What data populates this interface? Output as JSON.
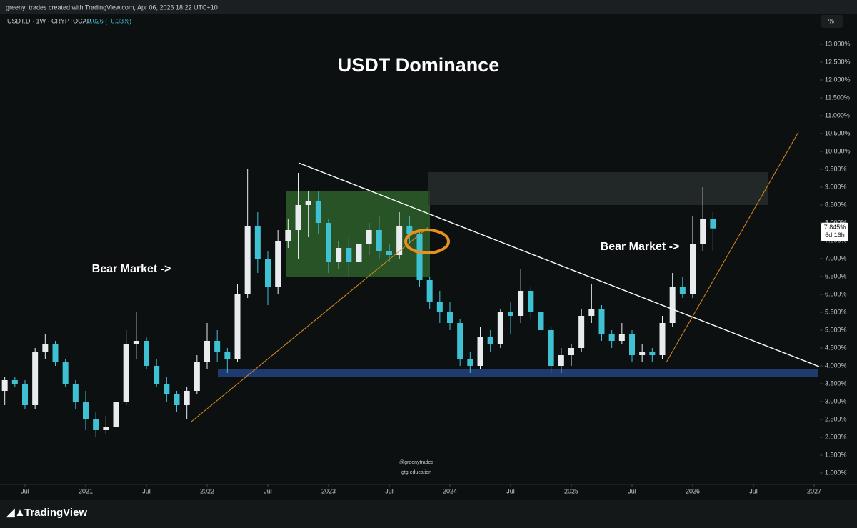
{
  "header": {
    "attribution": "greeny_trades created with TradingView.com, Apr 06, 2026 18:22 UTC+10",
    "symbol": "USDT.D · 1W · CRYPTOCAP",
    "change": "−0.026 (−0.33%)",
    "scale_button": "%"
  },
  "footer": {
    "brand": "TradingView"
  },
  "chart_data": {
    "type": "candlestick",
    "title": "USDT Dominance",
    "annotations": [
      "Bear Market ->",
      "Bear Market ->"
    ],
    "watermarks": [
      "@greenytrades",
      "gtg.education"
    ],
    "up_color": "#e8ecef",
    "down_color": "#3ec1d3",
    "last_price": {
      "value": 7.845,
      "label": "7.845%"
    },
    "countdown": "6d 16h",
    "x": [
      "2020-05",
      "2020-06",
      "2020-07",
      "2020-08",
      "2020-09",
      "2020-10",
      "2020-11",
      "2020-12",
      "2021-01",
      "2021-02",
      "2021-03",
      "2021-04",
      "2021-05",
      "2021-06",
      "2021-07",
      "2021-08",
      "2021-09",
      "2021-10",
      "2021-11",
      "2021-12",
      "2022-01",
      "2022-02",
      "2022-03",
      "2022-04",
      "2022-05",
      "2022-06",
      "2022-07",
      "2022-08",
      "2022-09",
      "2022-10",
      "2022-11",
      "2022-12",
      "2023-01",
      "2023-02",
      "2023-03",
      "2023-04",
      "2023-05",
      "2023-06",
      "2023-07",
      "2023-08",
      "2023-09",
      "2023-10",
      "2023-11",
      "2023-12",
      "2024-01",
      "2024-02",
      "2024-03",
      "2024-04",
      "2024-05",
      "2024-06",
      "2024-07",
      "2024-08",
      "2024-09",
      "2024-10",
      "2024-11",
      "2024-12",
      "2025-01",
      "2025-02",
      "2025-03",
      "2025-04",
      "2025-05",
      "2025-06",
      "2025-07",
      "2025-08",
      "2025-09",
      "2025-10",
      "2025-11",
      "2025-12",
      "2026-01",
      "2026-02",
      "2026-03"
    ],
    "open": [
      3.3,
      3.6,
      3.5,
      2.9,
      4.4,
      4.6,
      4.1,
      3.5,
      3.0,
      2.5,
      2.2,
      2.3,
      3.0,
      4.6,
      4.7,
      4.0,
      3.5,
      3.2,
      2.9,
      3.3,
      4.1,
      4.7,
      4.4,
      4.2,
      6.0,
      7.9,
      7.0,
      6.2,
      7.5,
      7.8,
      8.5,
      8.6,
      8.0,
      6.9,
      7.3,
      6.9,
      7.4,
      7.8,
      7.2,
      7.1,
      7.9,
      7.7,
      6.4,
      5.8,
      5.5,
      5.2,
      4.2,
      4.0,
      4.8,
      4.6,
      5.5,
      5.4,
      6.1,
      5.5,
      5.0,
      4.0,
      4.3,
      4.5,
      5.4,
      5.6,
      4.9,
      4.7,
      4.9,
      4.3,
      4.4,
      4.3,
      5.2,
      6.2,
      6.0,
      7.4,
      8.1
    ],
    "high": [
      3.7,
      3.7,
      3.6,
      4.5,
      4.9,
      4.7,
      4.2,
      3.6,
      3.3,
      2.7,
      2.6,
      3.3,
      5.0,
      5.5,
      4.8,
      4.2,
      3.7,
      3.3,
      3.4,
      4.3,
      5.2,
      5.0,
      4.5,
      6.3,
      9.5,
      8.3,
      7.2,
      7.8,
      8.1,
      9.4,
      8.9,
      8.9,
      8.1,
      7.5,
      7.6,
      7.5,
      8.0,
      8.2,
      7.4,
      8.3,
      8.2,
      7.8,
      6.5,
      6.1,
      5.8,
      5.3,
      4.4,
      5.1,
      5.0,
      5.6,
      5.8,
      6.7,
      6.2,
      5.6,
      5.1,
      4.5,
      4.6,
      5.6,
      6.3,
      5.7,
      5.0,
      5.2,
      5.0,
      4.6,
      4.5,
      5.4,
      6.6,
      6.5,
      8.2,
      9.0,
      8.3
    ],
    "low": [
      2.9,
      3.4,
      2.8,
      2.8,
      4.2,
      4.0,
      3.4,
      2.8,
      2.2,
      2.0,
      2.1,
      2.2,
      2.9,
      4.2,
      3.9,
      3.4,
      3.0,
      2.7,
      2.5,
      3.2,
      3.9,
      4.1,
      3.8,
      4.1,
      5.9,
      6.6,
      5.7,
      6.0,
      7.3,
      7.0,
      7.6,
      7.7,
      6.6,
      6.7,
      6.5,
      6.6,
      7.1,
      7.0,
      6.9,
      7.0,
      7.4,
      6.2,
      5.6,
      5.2,
      5.0,
      4.0,
      3.8,
      3.9,
      4.4,
      4.5,
      4.9,
      5.2,
      5.3,
      4.8,
      3.8,
      3.8,
      4.0,
      4.4,
      5.2,
      4.7,
      4.5,
      4.6,
      4.1,
      4.1,
      4.1,
      4.2,
      5.1,
      5.9,
      5.9,
      7.2,
      7.2
    ],
    "close": [
      3.6,
      3.5,
      2.9,
      4.4,
      4.6,
      4.1,
      3.5,
      3.0,
      2.5,
      2.2,
      2.3,
      3.0,
      4.6,
      4.7,
      4.0,
      3.5,
      3.2,
      2.9,
      3.3,
      4.1,
      4.7,
      4.4,
      4.2,
      6.0,
      7.9,
      7.0,
      6.2,
      7.5,
      7.8,
      8.5,
      8.6,
      8.0,
      6.9,
      7.3,
      6.9,
      7.4,
      7.8,
      7.2,
      7.1,
      7.9,
      7.7,
      6.4,
      5.8,
      5.5,
      5.2,
      4.2,
      4.0,
      4.8,
      4.6,
      5.5,
      5.4,
      6.1,
      5.5,
      5.0,
      4.0,
      4.3,
      4.5,
      5.4,
      5.6,
      4.9,
      4.7,
      4.9,
      4.3,
      4.4,
      4.3,
      5.2,
      6.2,
      6.0,
      7.4,
      8.1,
      7.845
    ],
    "ylim": [
      0.68,
      13.84
    ],
    "yticks": [
      {
        "value": 1,
        "label": "1.000%"
      },
      {
        "value": 1.5,
        "label": "1.500%"
      },
      {
        "value": 2,
        "label": "2.000%"
      },
      {
        "value": 2.5,
        "label": "2.500%"
      },
      {
        "value": 3,
        "label": "3.000%"
      },
      {
        "value": 3.5,
        "label": "3.500%"
      },
      {
        "value": 4,
        "label": "4.000%"
      },
      {
        "value": 4.5,
        "label": "4.500%"
      },
      {
        "value": 5,
        "label": "5.000%"
      },
      {
        "value": 5.5,
        "label": "5.500%"
      },
      {
        "value": 6,
        "label": "6.000%"
      },
      {
        "value": 6.5,
        "label": "6.500%"
      },
      {
        "value": 7,
        "label": "7.000%"
      },
      {
        "value": 7.5,
        "label": "7.500%"
      },
      {
        "value": 8,
        "label": "8.000%"
      },
      {
        "value": 8.5,
        "label": "8.500%"
      },
      {
        "value": 9,
        "label": "9.000%"
      },
      {
        "value": 9.5,
        "label": "9.500%"
      },
      {
        "value": 10,
        "label": "10.000%"
      },
      {
        "value": 10.5,
        "label": "10.500%"
      },
      {
        "value": 11,
        "label": "11.000%"
      },
      {
        "value": 11.5,
        "label": "11.500%"
      },
      {
        "value": 12,
        "label": "12.000%"
      },
      {
        "value": 12.5,
        "label": "12.500%"
      },
      {
        "value": 13,
        "label": "13.000%"
      }
    ],
    "xticks": [
      {
        "value": "2020-07",
        "label": "Jul"
      },
      {
        "value": "2021-01",
        "label": "2021"
      },
      {
        "value": "2021-07",
        "label": "Jul"
      },
      {
        "value": "2022-01",
        "label": "2022"
      },
      {
        "value": "2022-07",
        "label": "Jul"
      },
      {
        "value": "2023-01",
        "label": "2023"
      },
      {
        "value": "2023-07",
        "label": "Jul"
      },
      {
        "value": "2024-01",
        "label": "2024"
      },
      {
        "value": "2024-07",
        "label": "Jul"
      },
      {
        "value": "2025-01",
        "label": "2025"
      },
      {
        "value": "2025-07",
        "label": "Jul"
      },
      {
        "value": "2026-01",
        "label": "2026"
      },
      {
        "value": "2026-07",
        "label": "Jul"
      },
      {
        "value": "2027-01",
        "label": "2027"
      }
    ]
  }
}
